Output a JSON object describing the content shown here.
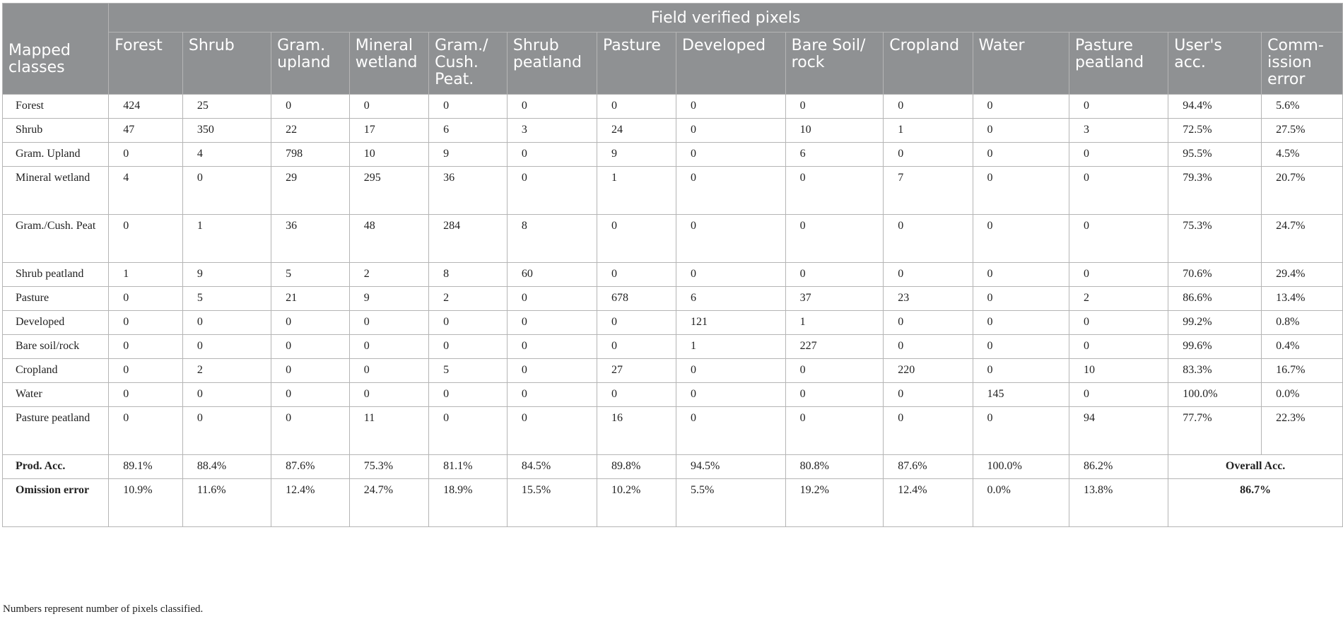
{
  "table": {
    "group_header": "Field verified pixels",
    "row_header": "Mapped classes",
    "columns": [
      "Forest",
      "Shrub",
      "Gram. upland",
      "Mineral wetland",
      "Gram./ Cush. Peat.",
      "Shrub peatland",
      "Pasture",
      "Developed",
      "Bare Soil/ rock",
      "Cropland",
      "Water",
      "Pasture peatland",
      "User's acc.",
      "Comm-ission error"
    ],
    "rows": [
      {
        "label": "Forest",
        "cells": [
          "424",
          "25",
          "0",
          "0",
          "0",
          "0",
          "0",
          "0",
          "0",
          "0",
          "0",
          "0",
          "94.4%",
          "5.6%"
        ]
      },
      {
        "label": "Shrub",
        "cells": [
          "47",
          "350",
          "22",
          "17",
          "6",
          "3",
          "24",
          "0",
          "10",
          "1",
          "0",
          "3",
          "72.5%",
          "27.5%"
        ]
      },
      {
        "label": "Gram. Upland",
        "cells": [
          "0",
          "4",
          "798",
          "10",
          "9",
          "0",
          "9",
          "0",
          "6",
          "0",
          "0",
          "0",
          "95.5%",
          "4.5%"
        ]
      },
      {
        "label": "Mineral wetland",
        "cells": [
          "4",
          "0",
          "29",
          "295",
          "36",
          "0",
          "1",
          "0",
          "0",
          "7",
          "0",
          "0",
          "79.3%",
          "20.7%"
        ]
      },
      {
        "label": "Gram./Cush. Peat",
        "cells": [
          "0",
          "1",
          "36",
          "48",
          "284",
          "8",
          "0",
          "0",
          "0",
          "0",
          "0",
          "0",
          "75.3%",
          "24.7%"
        ]
      },
      {
        "label": "Shrub peatland",
        "cells": [
          "1",
          "9",
          "5",
          "2",
          "8",
          "60",
          "0",
          "0",
          "0",
          "0",
          "0",
          "0",
          "70.6%",
          "29.4%"
        ]
      },
      {
        "label": "Pasture",
        "cells": [
          "0",
          "5",
          "21",
          "9",
          "2",
          "0",
          "678",
          "6",
          "37",
          "23",
          "0",
          "2",
          "86.6%",
          "13.4%"
        ]
      },
      {
        "label": "Developed",
        "cells": [
          "0",
          "0",
          "0",
          "0",
          "0",
          "0",
          "0",
          "121",
          "1",
          "0",
          "0",
          "0",
          "99.2%",
          "0.8%"
        ]
      },
      {
        "label": "Bare soil/rock",
        "cells": [
          "0",
          "0",
          "0",
          "0",
          "0",
          "0",
          "0",
          "1",
          "227",
          "0",
          "0",
          "0",
          "99.6%",
          "0.4%"
        ]
      },
      {
        "label": "Cropland",
        "cells": [
          "0",
          "2",
          "0",
          "0",
          "5",
          "0",
          "27",
          "0",
          "0",
          "220",
          "0",
          "10",
          "83.3%",
          "16.7%"
        ]
      },
      {
        "label": "Water",
        "cells": [
          "0",
          "0",
          "0",
          "0",
          "0",
          "0",
          "0",
          "0",
          "0",
          "0",
          "145",
          "0",
          "100.0%",
          "0.0%"
        ]
      },
      {
        "label": "Pasture peatland",
        "cells": [
          "0",
          "0",
          "0",
          "11",
          "0",
          "0",
          "16",
          "0",
          "0",
          "0",
          "0",
          "94",
          "77.7%",
          "22.3%"
        ]
      }
    ],
    "prod_acc": {
      "label": "Prod. Acc.",
      "cells": [
        "89.1%",
        "88.4%",
        "87.6%",
        "75.3%",
        "81.1%",
        "84.5%",
        "89.8%",
        "94.5%",
        "80.8%",
        "87.6%",
        "100.0%",
        "86.2%"
      ],
      "overall_label": "Overall Acc."
    },
    "omission": {
      "label": "Omission error",
      "cells": [
        "10.9%",
        "11.6%",
        "12.4%",
        "24.7%",
        "18.9%",
        "15.5%",
        "10.2%",
        "5.5%",
        "19.2%",
        "12.4%",
        "0.0%",
        "13.8%"
      ],
      "overall_value": "86.7%"
    }
  },
  "footnote": "Numbers represent number of pixels classified."
}
